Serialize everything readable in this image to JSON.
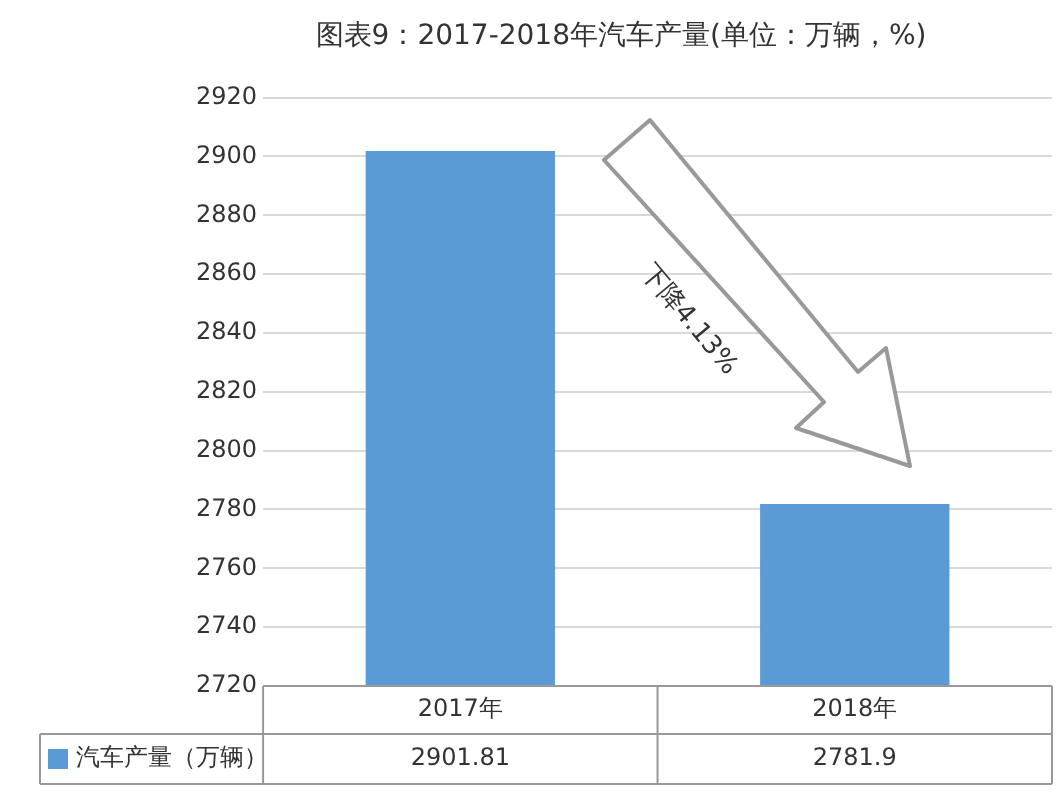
{
  "chart_data": {
    "type": "bar",
    "title": "图表9：2017-2018年汽车产量(单位：万辆，%)",
    "categories": [
      "2017年",
      "2018年"
    ],
    "series": [
      {
        "name": "汽车产量（万辆）",
        "color": "#5b9bd5",
        "values": [
          2901.81,
          2781.9
        ]
      }
    ],
    "ylim": [
      2720,
      2920
    ],
    "yticks": [
      2720,
      2740,
      2760,
      2780,
      2800,
      2820,
      2840,
      2860,
      2880,
      2900,
      2920
    ],
    "grid": "y",
    "legend": "bottom",
    "data_labels": true,
    "annotations": [
      "下降4.13%"
    ]
  }
}
